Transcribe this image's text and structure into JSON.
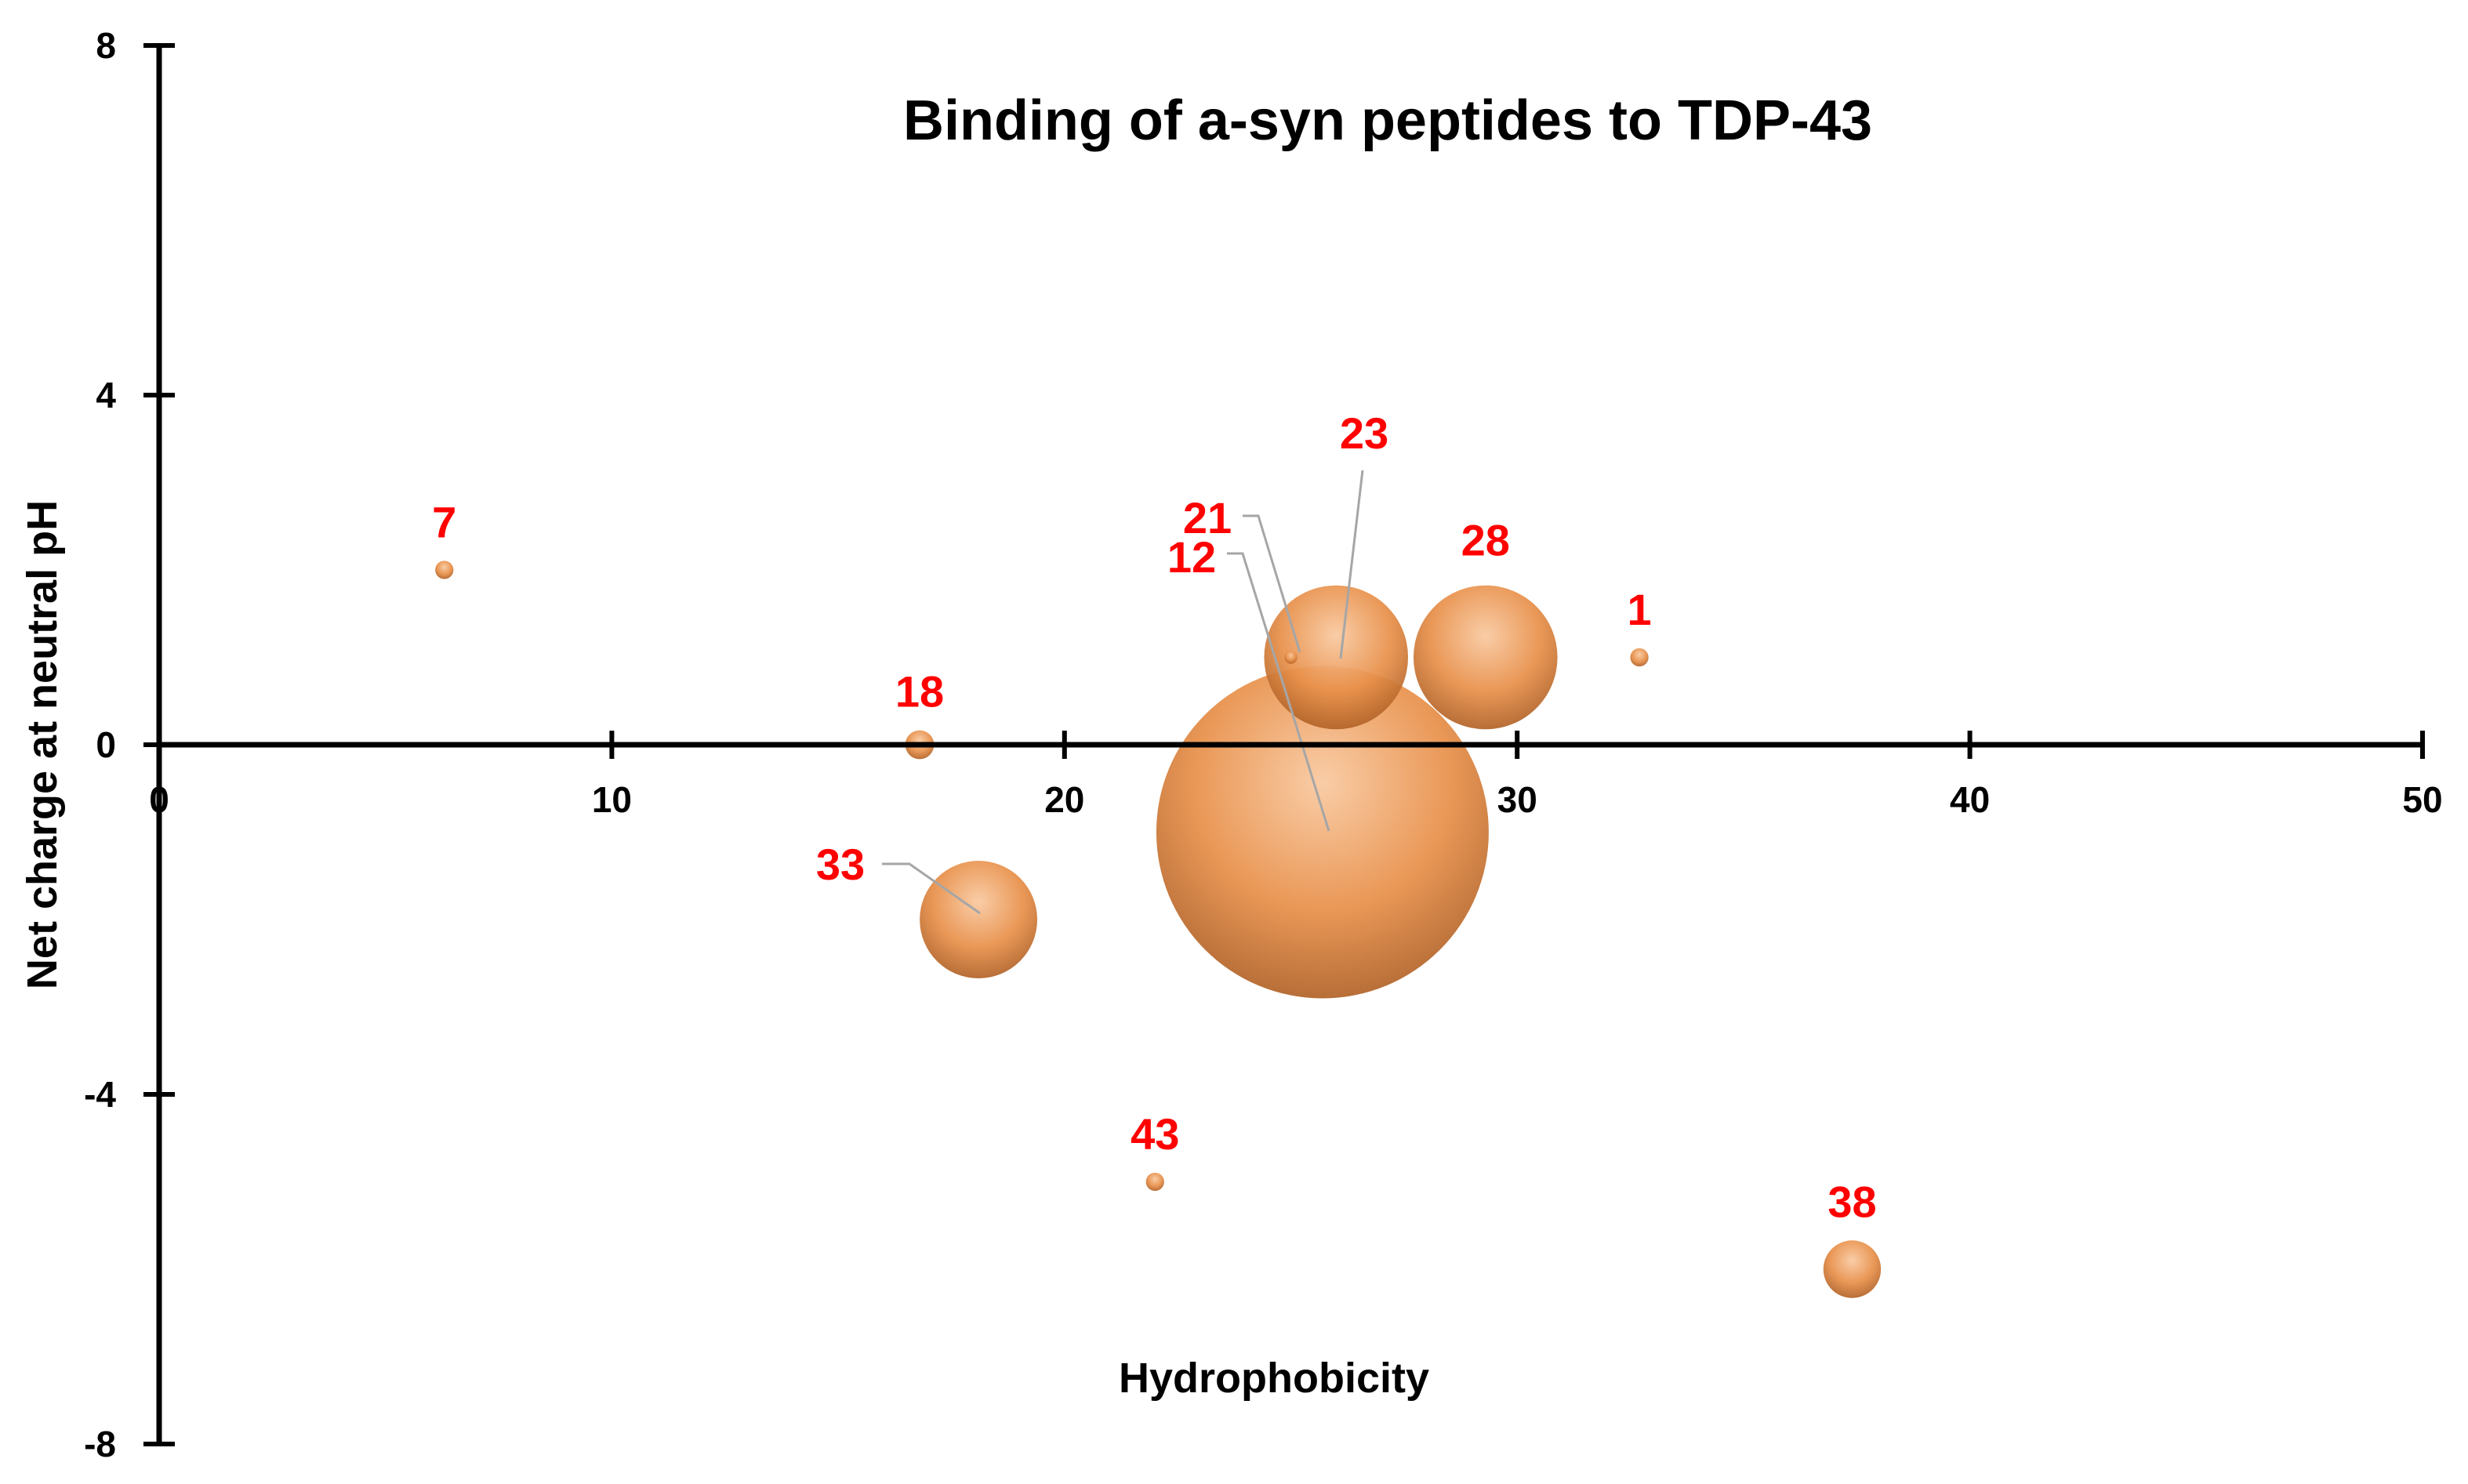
{
  "chart_data": {
    "type": "bubble",
    "title": "Binding of a-syn peptides to TDP-43",
    "xlabel": "Hydrophobicity",
    "ylabel": "Net charge at neutral pH",
    "xlim": [
      0,
      50
    ],
    "ylim": [
      -8,
      8
    ],
    "x_ticks": [
      0,
      10,
      20,
      30,
      40,
      50
    ],
    "y_ticks": [
      -8,
      -4,
      0,
      4,
      8
    ],
    "bubble_color": "#e8904a",
    "label_color": "#ff0000",
    "points": [
      {
        "label": "7",
        "x": 6.3,
        "y": 2,
        "size": 1.2
      },
      {
        "label": "18",
        "x": 16.8,
        "y": 0,
        "size": 3
      },
      {
        "label": "33",
        "x": 18.1,
        "y": -2,
        "size": 50
      },
      {
        "label": "21",
        "x": 25.0,
        "y": 1,
        "size": 0.6
      },
      {
        "label": "12",
        "x": 25.7,
        "y": -1,
        "size": 400
      },
      {
        "label": "23",
        "x": 26.0,
        "y": 1,
        "size": 75
      },
      {
        "label": "28",
        "x": 29.3,
        "y": 1,
        "size": 75
      },
      {
        "label": "1",
        "x": 32.7,
        "y": 1,
        "size": 1.2
      },
      {
        "label": "43",
        "x": 22.0,
        "y": -5,
        "size": 1.2
      },
      {
        "label": "38",
        "x": 37.4,
        "y": -6,
        "size": 12
      }
    ]
  }
}
